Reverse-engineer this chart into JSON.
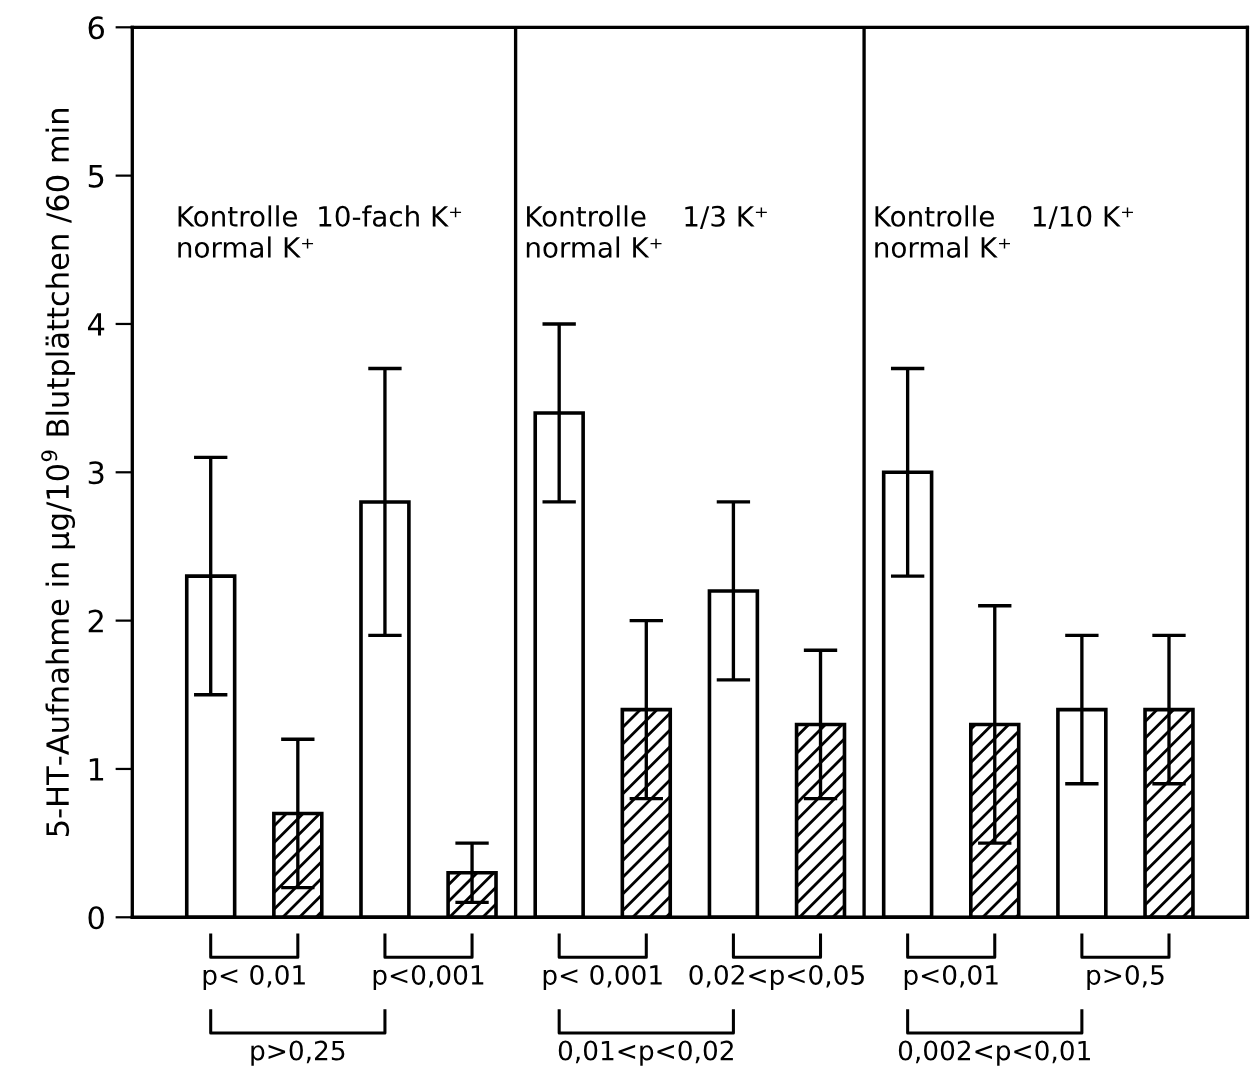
{
  "chart_data": {
    "type": "bar",
    "ylabel": "5-HT-Aufnahme in µg/10$^{9}$ Blutplättchen /60 min",
    "categories": [
      null,
      null,
      null,
      null,
      null,
      null,
      null,
      null,
      null,
      null,
      null,
      null
    ],
    "ylim": [
      0,
      6
    ],
    "yticks": [
      0,
      1,
      2,
      3,
      4,
      5,
      6
    ],
    "grid": false,
    "legend": false,
    "series": [
      {
        "color": "#ffffff",
        "values": [
          2.3,
          null,
          2.8,
          null,
          3.4,
          null,
          2.2,
          null,
          3.0,
          null,
          1.4,
          null
        ],
        "errors": [
          0.8,
          null,
          0.9,
          null,
          0.6,
          null,
          0.6,
          null,
          0.7,
          null,
          0.5,
          null
        ]
      },
      {
        "color": "#000000",
        "values": [
          null,
          0.7,
          null,
          0.3,
          null,
          1.4,
          null,
          1.3,
          null,
          1.3,
          null,
          1.4
        ],
        "errors": [
          null,
          0.5,
          null,
          0.2,
          null,
          0.6,
          null,
          0.5,
          null,
          0.8,
          null,
          0.5
        ]
      }
    ],
    "annotations": [
      "Kontrolle  10-fach K⁺\nnormal K⁺",
      "p< 0,01",
      "p<0,001",
      "p>0,25",
      "Kontrolle    1/3 K⁺\nnormal K⁺",
      "p< 0,001",
      "0,02<p<0,05",
      "0,01<p<0,02",
      "Kontrolle    1/10 K⁺\nnormal K⁺",
      "p<0,01",
      "p>0,5",
      "0,002<p<0,01"
    ]
  }
}
